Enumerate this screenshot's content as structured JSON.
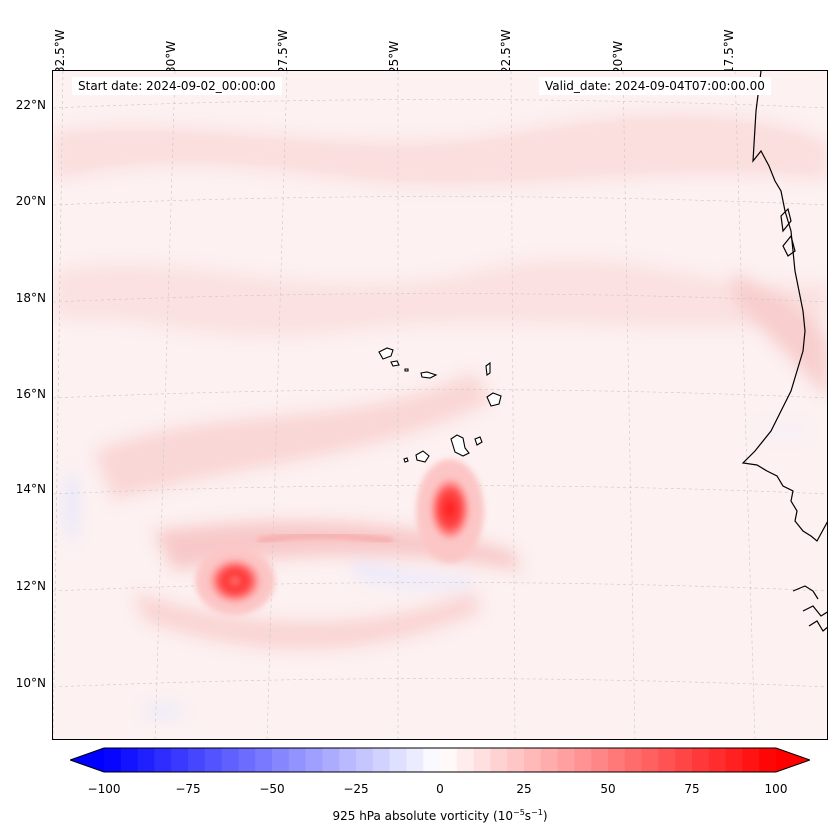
{
  "map": {
    "start_date": "Start date: 2024-09-02_00:00:00",
    "valid_date": "Valid_date: 2024-09-04T07:00:00.00",
    "lon_labels": [
      "32.5°W",
      "30°W",
      "27.5°W",
      "25°W",
      "22.5°W",
      "20°W",
      "17.5°W"
    ],
    "lat_labels": [
      "22°N",
      "20°N",
      "18°N",
      "16°N",
      "14°N",
      "12°N",
      "10°N"
    ],
    "extent": {
      "lon_min": -32.5,
      "lon_max": -15.3,
      "lat_min": 8.9,
      "lat_max": 22.8
    },
    "features": [
      {
        "name": "vorticity-maximum",
        "lon": -23.3,
        "lat": 13.7,
        "value": 100
      },
      {
        "name": "vorticity-maximum",
        "lon": -28.4,
        "lat": 12.1,
        "value": 85
      },
      {
        "name": "cape-verde-islands",
        "lon": -24.0,
        "lat": 15.8
      },
      {
        "name": "west-african-coast",
        "lon": -16.8,
        "lat": 14.7
      }
    ]
  },
  "colorbar": {
    "ticks": [
      "−100",
      "−75",
      "−50",
      "−25",
      "0",
      "25",
      "50",
      "75",
      "100"
    ],
    "label_prefix": "925 hPa absolute vorticity (10",
    "label_exp1": "−5",
    "label_mid": "s",
    "label_exp2": "−1",
    "label_suffix": ")",
    "min": -100,
    "max": 100,
    "colors": {
      "negative": "#0000ff",
      "zero": "#ffffff",
      "positive": "#ff0000"
    }
  }
}
